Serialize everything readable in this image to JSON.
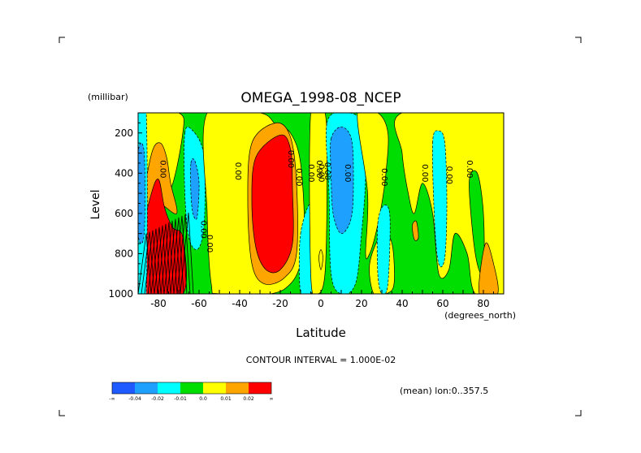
{
  "chart_data": {
    "type": "heatmap",
    "title": "OMEGA_1998-08_NCEP",
    "xlabel": "Latitude",
    "xunits": "(degrees_north)",
    "ylabel": "Level",
    "yunits": "(millibar)",
    "xlim": [
      -90,
      90
    ],
    "ylim": [
      1000,
      100
    ],
    "x_ticks": [
      -80,
      -60,
      -40,
      -20,
      0,
      20,
      40,
      60,
      80
    ],
    "y_ticks": [
      200,
      400,
      600,
      800,
      1000
    ],
    "contour_interval_label": "CONTOUR INTERVAL = 1.000E-02",
    "subtitle": "(mean) lon:0..357.5",
    "contour_labels": [
      "0.00",
      "0.00",
      "0.00",
      "0.00",
      "0.00",
      "0.00",
      "0.00",
      "0.00",
      "0.00",
      "0.00",
      "0.00",
      "0.00",
      "0.00",
      "0.00",
      "0.00"
    ],
    "legend": {
      "colors": [
        "#1e5aff",
        "#1ea0ff",
        "#00ffff",
        "#00dd00",
        "#ffff00",
        "#ffa500",
        "#ff0000"
      ],
      "labels": [
        "-∞",
        "-0.04",
        "-0.02",
        "-0.01",
        "0.0",
        "0.01",
        "0.02",
        "∞"
      ]
    },
    "regions": [
      {
        "name": "green-background",
        "level": "-0.01..0.0",
        "points": [
          [
            -90,
            100
          ],
          [
            90,
            100
          ],
          [
            90,
            1000
          ],
          [
            -90,
            1000
          ]
        ]
      },
      {
        "name": "yellow-west",
        "level": "0.0..0.01",
        "points": [
          [
            -88,
            100
          ],
          [
            -70,
            100
          ],
          [
            -68,
            200
          ],
          [
            -75,
            500
          ],
          [
            -86,
            450
          ],
          [
            -88,
            300
          ]
        ]
      },
      {
        "name": "orange-west",
        "level": "0.01..0.02",
        "points": [
          [
            -83,
            290
          ],
          [
            -79,
            250
          ],
          [
            -76,
            320
          ],
          [
            -74,
            450
          ],
          [
            -71,
            600
          ],
          [
            -80,
            550
          ],
          [
            -86,
            600
          ],
          [
            -87,
            500
          ]
        ]
      },
      {
        "name": "red-west",
        "level": "0.02..∞",
        "points": [
          [
            -90,
            800
          ],
          [
            -84,
            520
          ],
          [
            -80,
            430
          ],
          [
            -77,
            570
          ],
          [
            -73,
            670
          ],
          [
            -68,
            720
          ],
          [
            -68,
            1000
          ],
          [
            -90,
            1000
          ]
        ]
      },
      {
        "name": "cyan-west",
        "level": "-0.02..-0.01",
        "points": [
          [
            -90,
            100
          ],
          [
            -86,
            100
          ],
          [
            -86,
            1000
          ],
          [
            -90,
            1000
          ]
        ]
      },
      {
        "name": "blue-west",
        "level": "-0.04..-0.02",
        "points": [
          [
            -90,
            300
          ],
          [
            -87,
            300
          ],
          [
            -87,
            700
          ],
          [
            -90,
            700
          ]
        ]
      },
      {
        "name": "cyan-60",
        "level": "-0.02..-0.01",
        "points": [
          [
            -67,
            200
          ],
          [
            -63,
            190
          ],
          [
            -58,
            290
          ],
          [
            -57,
            500
          ],
          [
            -58,
            700
          ],
          [
            -61,
            780
          ],
          [
            -65,
            720
          ],
          [
            -67,
            500
          ]
        ]
      },
      {
        "name": "blue-60",
        "level": "-0.04..-0.02",
        "points": [
          [
            -64,
            350
          ],
          [
            -62,
            340
          ],
          [
            -60,
            450
          ],
          [
            -61,
            620
          ],
          [
            -63,
            600
          ],
          [
            -64,
            500
          ]
        ]
      },
      {
        "name": "yellow-40",
        "level": "0.0..0.01",
        "points": [
          [
            -56,
            100
          ],
          [
            -30,
            100
          ],
          [
            -22,
            160
          ],
          [
            -15,
            200
          ],
          [
            -10,
            350
          ],
          [
            -8,
            700
          ],
          [
            -10,
            850
          ],
          [
            -15,
            950
          ],
          [
            -25,
            1000
          ],
          [
            -50,
            1000
          ],
          [
            -54,
            950
          ],
          [
            -56,
            600
          ]
        ]
      },
      {
        "name": "orange-25",
        "level": "0.01..0.02",
        "points": [
          [
            -34,
            250
          ],
          [
            -22,
            150
          ],
          [
            -15,
            220
          ],
          [
            -12,
            450
          ],
          [
            -12,
            800
          ],
          [
            -18,
            920
          ],
          [
            -28,
            950
          ],
          [
            -34,
            850
          ],
          [
            -36,
            550
          ]
        ]
      },
      {
        "name": "red-25",
        "level": "0.02..∞",
        "points": [
          [
            -32,
            320
          ],
          [
            -20,
            210
          ],
          [
            -15,
            280
          ],
          [
            -14,
            480
          ],
          [
            -14,
            750
          ],
          [
            -20,
            880
          ],
          [
            -27,
            880
          ],
          [
            -32,
            770
          ],
          [
            -34,
            550
          ]
        ]
      },
      {
        "name": "cyan-10",
        "level": "-0.02..-0.01",
        "points": [
          [
            -10,
            700
          ],
          [
            -4,
            550
          ],
          [
            -2,
            900
          ],
          [
            -5,
            1000
          ],
          [
            -10,
            1000
          ]
        ]
      },
      {
        "name": "yellow-3",
        "level": "0.0..0.01",
        "points": [
          [
            -5,
            100
          ],
          [
            2,
            100
          ],
          [
            3,
            400
          ],
          [
            2,
            900
          ],
          [
            -2,
            1000
          ],
          [
            -5,
            900
          ]
        ]
      },
      {
        "name": "cyan-10n",
        "level": "-0.02..-0.01",
        "points": [
          [
            3,
            150
          ],
          [
            12,
            100
          ],
          [
            20,
            150
          ],
          [
            22,
            400
          ],
          [
            20,
            700
          ],
          [
            17,
            950
          ],
          [
            10,
            1000
          ],
          [
            5,
            900
          ],
          [
            4,
            500
          ]
        ]
      },
      {
        "name": "blue-10n",
        "level": "-0.04..-0.02",
        "points": [
          [
            5,
            230
          ],
          [
            10,
            170
          ],
          [
            15,
            230
          ],
          [
            16,
            420
          ],
          [
            15,
            620
          ],
          [
            10,
            700
          ],
          [
            6,
            600
          ],
          [
            5,
            400
          ]
        ]
      },
      {
        "name": "yellow-25n",
        "level": "0.0..0.01",
        "points": [
          [
            18,
            100
          ],
          [
            28,
            100
          ],
          [
            33,
            200
          ],
          [
            32,
            400
          ],
          [
            30,
            550
          ],
          [
            27,
            700
          ],
          [
            24,
            800
          ],
          [
            22,
            800
          ],
          [
            23,
            500
          ]
        ]
      },
      {
        "name": "yellow-28n-low",
        "level": "0.0..0.01",
        "points": [
          [
            24,
            850
          ],
          [
            30,
            700
          ],
          [
            35,
            750
          ],
          [
            36,
            950
          ],
          [
            32,
            1000
          ],
          [
            26,
            1000
          ]
        ]
      },
      {
        "name": "cyan-30n",
        "level": "-0.02..-0.01",
        "points": [
          [
            28,
            650
          ],
          [
            31,
            560
          ],
          [
            34,
            620
          ],
          [
            33,
            950
          ],
          [
            30,
            1000
          ],
          [
            28,
            900
          ]
        ]
      },
      {
        "name": "yellow-north",
        "level": "0.0..0.01",
        "points": [
          [
            40,
            100
          ],
          [
            90,
            100
          ],
          [
            90,
            1000
          ],
          [
            76,
            1000
          ],
          [
            72,
            800
          ],
          [
            66,
            700
          ],
          [
            63,
            880
          ],
          [
            58,
            900
          ],
          [
            55,
            600
          ],
          [
            50,
            450
          ],
          [
            46,
            600
          ],
          [
            43,
            500
          ],
          [
            40,
            300
          ]
        ]
      },
      {
        "name": "cyan-60n",
        "level": "-0.02..-0.01",
        "points": [
          [
            55,
            250
          ],
          [
            58,
            190
          ],
          [
            61,
            250
          ],
          [
            62,
            550
          ],
          [
            61,
            820
          ],
          [
            58,
            850
          ],
          [
            56,
            650
          ]
        ]
      },
      {
        "name": "green-78n",
        "level": "-0.01..0.0",
        "points": [
          [
            73,
            450
          ],
          [
            77,
            400
          ],
          [
            80,
            600
          ],
          [
            80,
            900
          ],
          [
            76,
            800
          ]
        ]
      },
      {
        "name": "orange-85n",
        "level": "0.01..0.02",
        "points": [
          [
            78,
            1000
          ],
          [
            81,
            750
          ],
          [
            85,
            850
          ],
          [
            87,
            1000
          ]
        ]
      },
      {
        "name": "orange-45n",
        "level": "0.01..0.02",
        "points": [
          [
            45,
            660
          ],
          [
            47,
            640
          ],
          [
            48,
            720
          ],
          [
            46,
            730
          ]
        ]
      },
      {
        "name": "yellow-0-low",
        "level": "0.0..0.01",
        "points": [
          [
            -1,
            820
          ],
          [
            0,
            780
          ],
          [
            1,
            820
          ],
          [
            0,
            880
          ]
        ]
      }
    ]
  }
}
